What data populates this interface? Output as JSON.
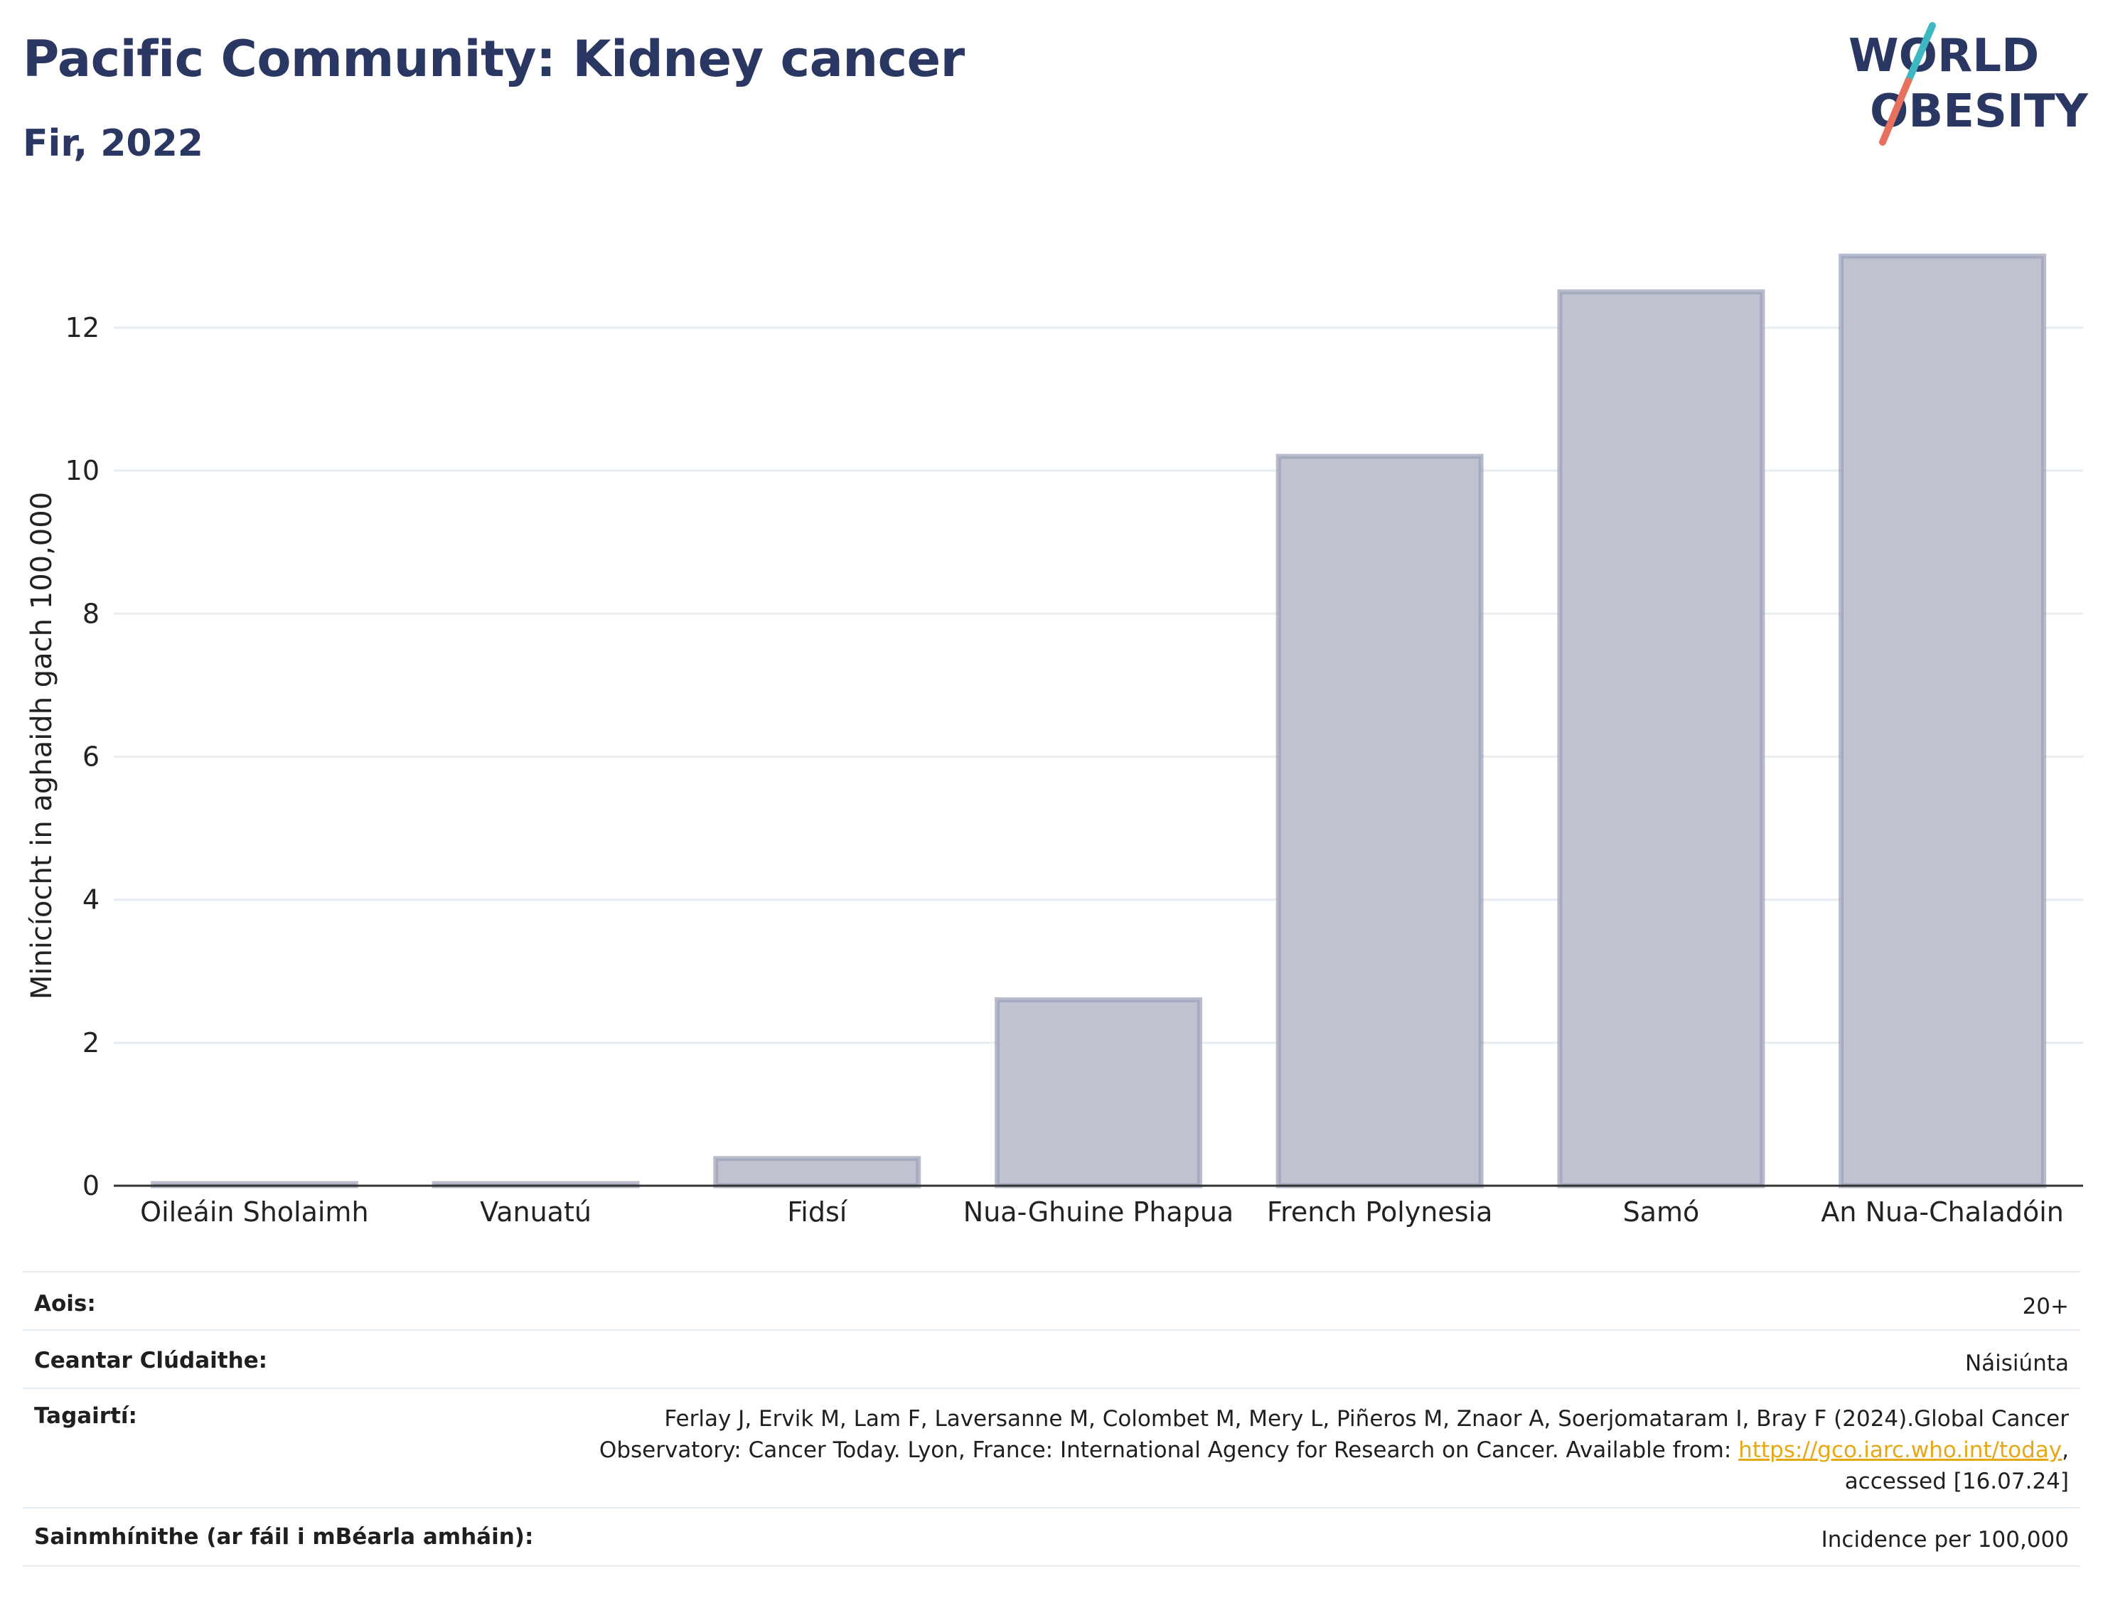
{
  "header": {
    "title": "Pacific Community: Kidney cancer",
    "subtitle": "Fir, 2022"
  },
  "logo": {
    "line1": "WORLD",
    "line2": "OBESITY",
    "slash_colors": [
      "#3db8c1",
      "#e8705f"
    ]
  },
  "chart_data": {
    "type": "bar",
    "categories": [
      "Oileáin Sholaimh",
      "Vanuatú",
      "Fidsí",
      "Nua-Ghuine Phapua",
      "French Polynesia",
      "Samó",
      "An Nua-Chaladóin"
    ],
    "values": [
      0.03,
      0.03,
      0.38,
      2.6,
      10.2,
      12.5,
      13.0
    ],
    "ylabel": "Minicíocht in aghaidh gach 100,000",
    "ylim": [
      0,
      13.5
    ],
    "yticks": [
      0,
      2,
      4,
      6,
      8,
      10,
      12
    ],
    "grid": true,
    "bar_color": "#bfc3d0",
    "bar_edge_color": "#9aa0b8",
    "axis_color": "#333333",
    "grid_color": "#e8edf2"
  },
  "meta": {
    "age_label": "Aois:",
    "age_value": "20+",
    "coverage_label": "Ceantar Clúdaithe:",
    "coverage_value": "Náisiúnta",
    "refs_label": "Tagairtí:",
    "refs_line1": "Ferlay J, Ervik M, Lam F, Laversanne M, Colombet M, Mery L, Piñeros M, Znaor A, Soerjomataram I, Bray F (2024).Global Cancer",
    "refs_line2_pre": "Observatory: Cancer Today. Lyon, France: International Agency for Research on Cancer. Available from: ",
    "refs_link": "https://gco.iarc.who.int/today",
    "refs_line2_post": ",",
    "refs_line3": "accessed [16.07.24]",
    "defs_label": "Sainmhínithe (ar fáil i mBéarla amháin):",
    "defs_value": "Incidence per 100,000",
    "link_color": "#e6a817"
  }
}
